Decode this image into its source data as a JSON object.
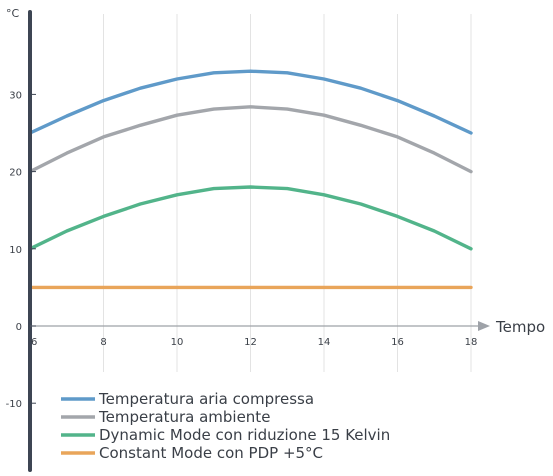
{
  "chart_data": {
    "type": "line",
    "y_unit_label": "°C",
    "xlabel": "Tempo",
    "x_ticks": [
      6,
      8,
      10,
      12,
      14,
      16,
      18
    ],
    "y_ticks": [
      -10,
      0,
      10,
      20,
      30
    ],
    "xlim": [
      6,
      18
    ],
    "ylim": [
      -15,
      42
    ],
    "grid": "vertical",
    "legend_position": "bottom-left",
    "series": [
      {
        "name": "Temperatura aria compressa",
        "color": "#5f9ac9",
        "x": [
          6,
          7,
          8,
          9,
          10,
          11,
          12,
          13,
          14,
          15,
          16,
          17,
          18
        ],
        "y": [
          25.0,
          27.2,
          29.2,
          30.8,
          32.0,
          32.8,
          33.0,
          32.8,
          32.0,
          30.8,
          29.2,
          27.2,
          25.0
        ]
      },
      {
        "name": "Temperatura ambiente",
        "color": "#a3a6ab",
        "x": [
          6,
          7,
          8,
          9,
          10,
          11,
          12,
          13,
          14,
          15,
          16,
          17,
          18
        ],
        "y": [
          20.0,
          22.4,
          24.5,
          26.0,
          27.3,
          28.1,
          28.4,
          28.1,
          27.3,
          26.0,
          24.5,
          22.4,
          20.0
        ]
      },
      {
        "name": "Dynamic Mode con riduzione 15 Kelvin",
        "color": "#52b48a",
        "x": [
          6,
          7,
          8,
          9,
          10,
          11,
          12,
          13,
          14,
          15,
          16,
          17,
          18
        ],
        "y": [
          10.0,
          12.3,
          14.2,
          15.8,
          17.0,
          17.8,
          18.0,
          17.8,
          17.0,
          15.8,
          14.2,
          12.3,
          10.0
        ]
      },
      {
        "name": "Constant Mode con PDP +5°C",
        "color": "#e9a55a",
        "x": [
          6,
          7,
          8,
          9,
          10,
          11,
          12,
          13,
          14,
          15,
          16,
          17,
          18
        ],
        "y": [
          5,
          5,
          5,
          5,
          5,
          5,
          5,
          5,
          5,
          5,
          5,
          5,
          5
        ]
      }
    ]
  }
}
